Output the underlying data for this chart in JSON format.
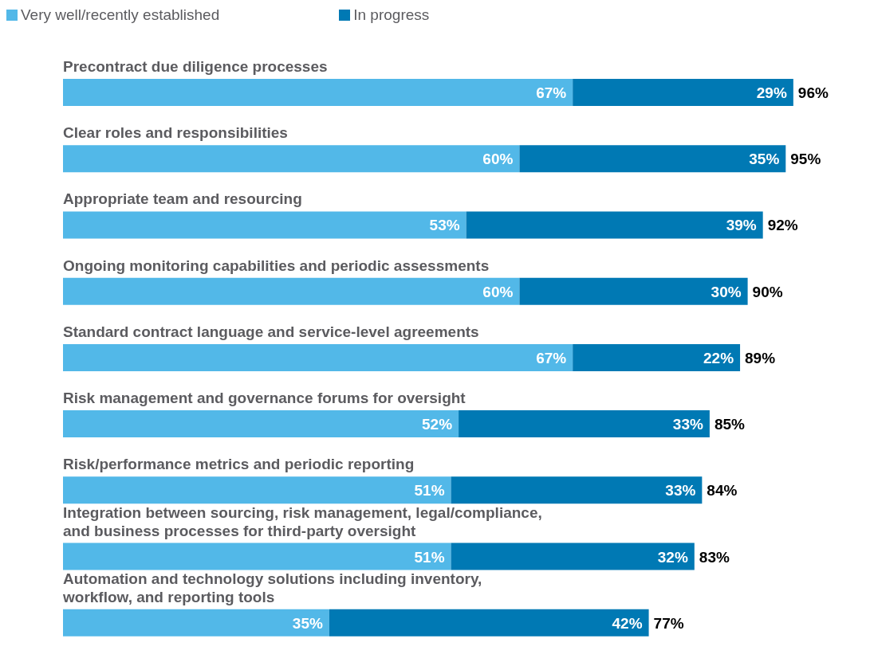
{
  "chart_data": {
    "type": "bar",
    "orientation": "horizontal",
    "stacked": true,
    "categories": [
      "Precontract due diligence processes",
      "Clear roles and responsibilities",
      "Appropriate team and resourcing",
      "Ongoing monitoring capabilities and periodic assessments",
      "Standard contract language and service-level agreements",
      "Risk management and governance forums for oversight",
      "Risk/performance metrics and periodic reporting",
      "Integration between sourcing, risk management, legal/compliance, and business processes for third-party oversight",
      "Automation and technology solutions including inventory, workflow, and reporting tools"
    ],
    "series": [
      {
        "name": "Very well/recently established",
        "color": "#52b8e8",
        "values": [
          67,
          60,
          53,
          60,
          67,
          52,
          51,
          51,
          35
        ],
        "value_labels": [
          "67%",
          "60%",
          "53%",
          "60%",
          "67%",
          "52%",
          "51%",
          "51%",
          "35%"
        ]
      },
      {
        "name": "In progress",
        "color": "#0079b4",
        "values": [
          29,
          35,
          39,
          30,
          22,
          33,
          33,
          32,
          42
        ],
        "value_labels": [
          "29%",
          "35%",
          "39%",
          "30%",
          "22%",
          "33%",
          "33%",
          "32%",
          "42%"
        ]
      }
    ],
    "totals": [
      "96%",
      "95%",
      "92%",
      "90%",
      "89%",
      "85%",
      "84%",
      "83%",
      "77%"
    ],
    "tick_labels": false,
    "grid": false,
    "legend": "top left"
  }
}
